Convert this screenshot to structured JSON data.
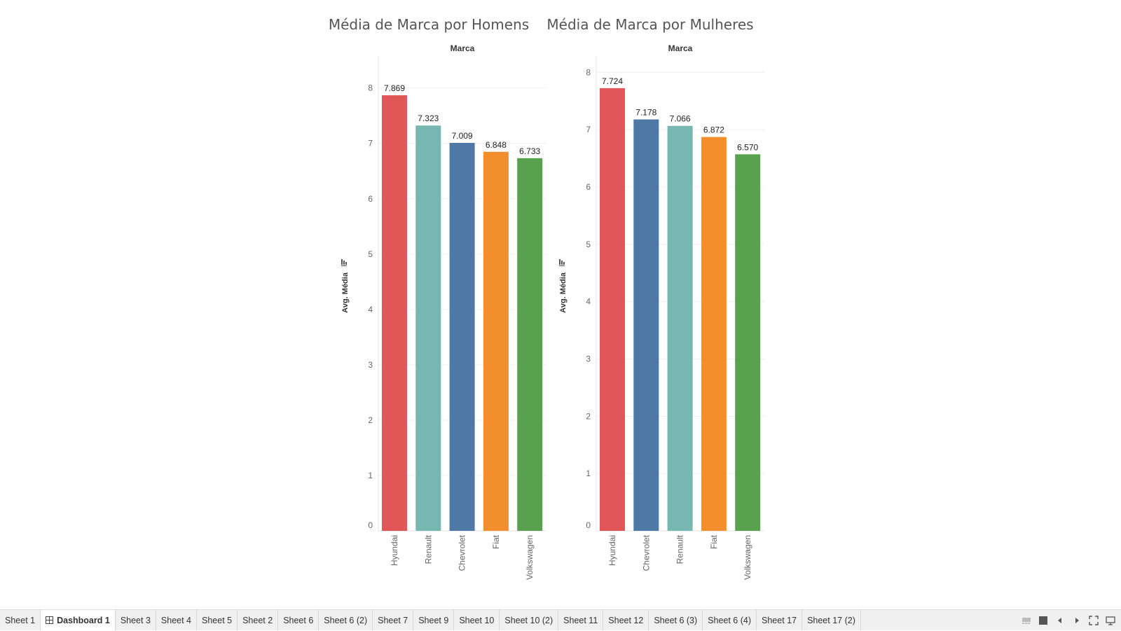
{
  "chart_data": [
    {
      "type": "bar",
      "title": "Média de Marca por Homens",
      "header": "Marca",
      "ylabel": "Avg. Média",
      "ylim": [
        0,
        8.3
      ],
      "yticks": [
        0,
        1,
        2,
        3,
        4,
        5,
        6,
        7,
        8
      ],
      "categories": [
        "Hyundai",
        "Renault",
        "Chevrolet",
        "Fiat",
        "Volkswagen"
      ],
      "values": [
        7.869,
        7.323,
        7.009,
        6.848,
        6.733
      ],
      "labels": [
        "7.869",
        "7.323",
        "7.009",
        "6.848",
        "6.733"
      ],
      "colors": [
        "#e15759",
        "#76b7b2",
        "#4e79a7",
        "#f28e2b",
        "#59a14f"
      ],
      "grid": true,
      "sort_icon": "sort-descending-icon"
    },
    {
      "type": "bar",
      "title": "Média de Marca por Mulheres",
      "header": "Marca",
      "ylabel": "Avg. Média",
      "ylim": [
        0,
        8.15
      ],
      "yticks": [
        0,
        1,
        2,
        3,
        4,
        5,
        6,
        7,
        8
      ],
      "categories": [
        "Hyundai",
        "Chevrolet",
        "Renault",
        "Fiat",
        "Volkswagen"
      ],
      "values": [
        7.724,
        7.178,
        7.066,
        6.872,
        6.57
      ],
      "labels": [
        "7.724",
        "7.178",
        "7.066",
        "6.872",
        "6.570"
      ],
      "colors": [
        "#e15759",
        "#4e79a7",
        "#76b7b2",
        "#f28e2b",
        "#59a14f"
      ],
      "grid": true,
      "sort_icon": "sort-descending-icon"
    }
  ],
  "tabs": [
    {
      "label": "Sheet 1",
      "active": false
    },
    {
      "label": "Dashboard 1",
      "active": true,
      "icon": "dashboard-grid-icon"
    },
    {
      "label": "Sheet 3",
      "active": false
    },
    {
      "label": "Sheet 4",
      "active": false
    },
    {
      "label": "Sheet 5",
      "active": false
    },
    {
      "label": "Sheet 2",
      "active": false
    },
    {
      "label": "Sheet 6",
      "active": false
    },
    {
      "label": "Sheet 6 (2)",
      "active": false
    },
    {
      "label": "Sheet 7",
      "active": false
    },
    {
      "label": "Sheet 9",
      "active": false
    },
    {
      "label": "Sheet 10",
      "active": false
    },
    {
      "label": "Sheet 10 (2)",
      "active": false
    },
    {
      "label": "Sheet 11",
      "active": false
    },
    {
      "label": "Sheet 12",
      "active": false
    },
    {
      "label": "Sheet 6 (3)",
      "active": false
    },
    {
      "label": "Sheet 6 (4)",
      "active": false
    },
    {
      "label": "Sheet 17",
      "active": false
    },
    {
      "label": "Sheet 17 (2)",
      "active": false
    }
  ],
  "controls": [
    "show-filmstrip-icon",
    "show-tabs-icon",
    "previous-sheet-icon",
    "next-sheet-icon",
    "fullscreen-icon",
    "presentation-mode-icon"
  ]
}
